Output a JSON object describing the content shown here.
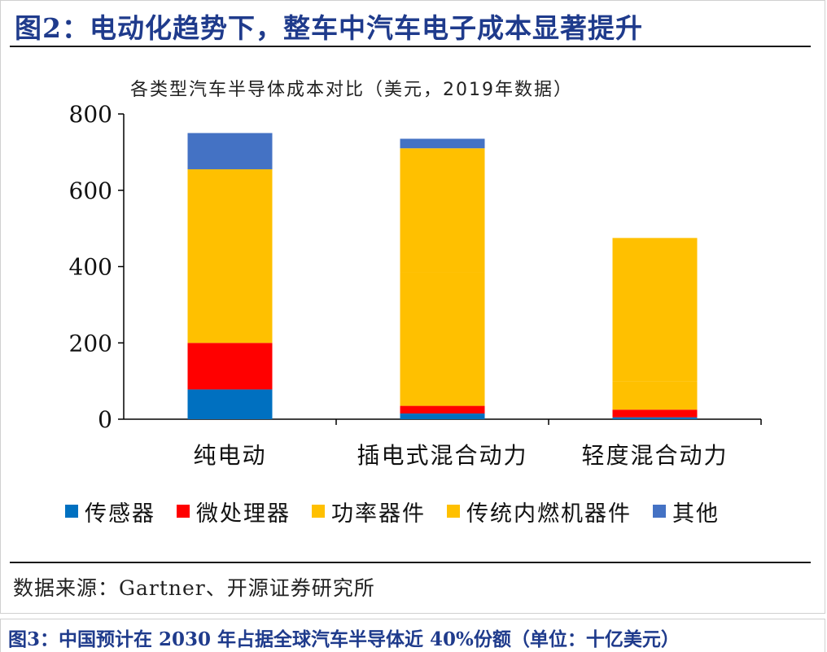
{
  "figure_title": "图2：电动化趋势下，整车中汽车电子成本显著提升",
  "source_note": "数据来源：Gartner、开源证券研究所",
  "next_figure_title": "图3：中国预计在 2030 年占据全球汽车半导体近 40%份额（单位：十亿美元）",
  "colors": {
    "title_blue": "#1f3b8c",
    "sensor": "#0070c0",
    "micro": "#ff0000",
    "power": "#ffc000",
    "ice": "#ffc000",
    "other": "#4472c4"
  },
  "chart_data": {
    "type": "bar",
    "stacked": true,
    "title": "各类型汽车半导体成本对比（美元，2019年数据）",
    "categories": [
      "纯电动",
      "插电式混合动力",
      "轻度混合动力"
    ],
    "series": [
      {
        "name": "传感器",
        "color": "#0070c0",
        "values": [
          78,
          15,
          5
        ]
      },
      {
        "name": "微处理器",
        "color": "#ff0000",
        "values": [
          122,
          20,
          20
        ]
      },
      {
        "name": "功率器件",
        "color": "#ffc000",
        "values": [
          455,
          350,
          75
        ]
      },
      {
        "name": "传统内燃机器件",
        "color": "#ffc000",
        "values": [
          0,
          325,
          375
        ]
      },
      {
        "name": "其他",
        "color": "#4472c4",
        "values": [
          95,
          25,
          0
        ]
      }
    ],
    "ylim": [
      0,
      800
    ],
    "yticks": [
      "0",
      "200",
      "400",
      "600",
      "800"
    ],
    "xlabel": "",
    "ylabel": "",
    "legend_position": "bottom",
    "grid": false
  }
}
